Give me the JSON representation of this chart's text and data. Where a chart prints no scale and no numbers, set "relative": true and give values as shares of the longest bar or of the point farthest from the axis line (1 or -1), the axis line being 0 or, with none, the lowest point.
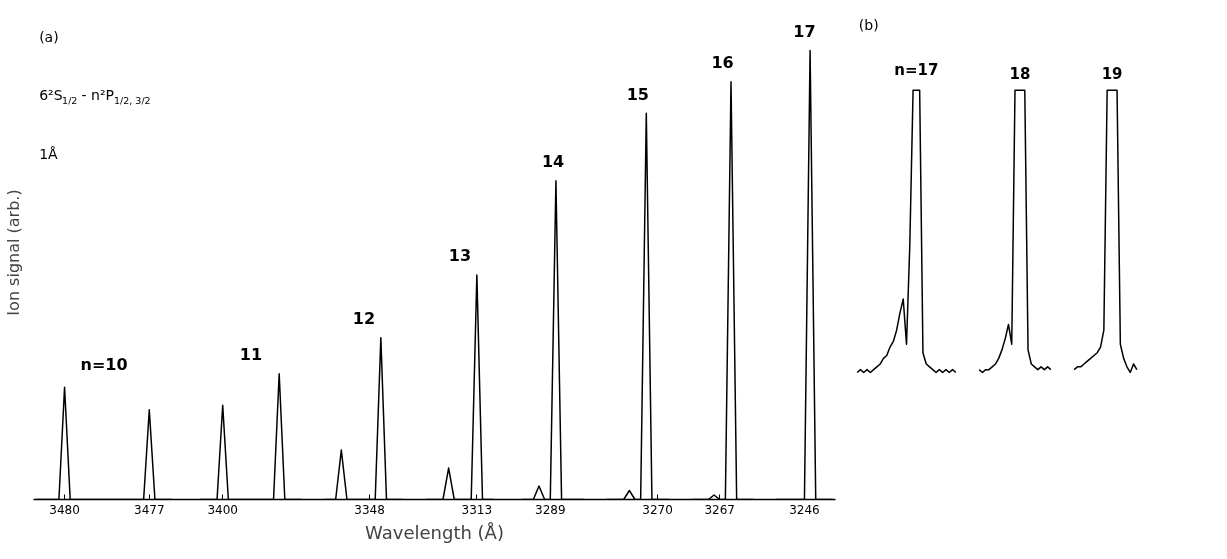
{
  "chart_data": [
    {
      "type": "line",
      "relative": true,
      "ylabel": "Ion signal (arb.)",
      "xlabel": "Wavelength (Å)",
      "annotations": [
        "(a)",
        "6²S$_{1/2}$ - n²P$_{1/2, 3/2}$",
        "1Å"
      ],
      "tick_labels": "x",
      "categories": [
        null,
        null,
        null,
        null,
        null,
        "3480",
        null,
        null,
        null,
        null,
        null,
        null,
        null,
        null,
        null,
        null,
        null,
        null,
        null,
        null,
        "3477",
        null,
        null,
        null,
        null,
        null,
        null,
        null,
        null,
        null,
        null,
        null,
        null,
        "3400",
        null,
        null,
        null,
        null,
        null,
        null,
        null,
        null,
        null,
        null,
        null,
        null,
        null,
        null,
        null,
        null,
        null,
        null,
        null,
        null,
        null,
        null,
        null,
        null,
        null,
        "3348",
        null,
        null,
        null,
        null,
        null,
        null,
        null,
        null,
        null,
        null,
        null,
        null,
        null,
        null,
        null,
        null,
        null,
        null,
        "3313",
        null,
        null,
        null,
        null,
        null,
        null,
        null,
        null,
        null,
        null,
        null,
        null,
        "3289",
        null,
        null,
        null,
        null,
        null,
        null,
        null,
        null,
        null,
        null,
        null,
        null,
        null,
        null,
        null,
        null,
        null,
        null,
        "3270",
        null,
        null,
        null,
        null,
        null,
        null,
        null,
        null,
        null,
        null,
        "3267",
        null,
        null,
        null,
        null,
        null,
        null,
        null,
        null,
        null,
        null,
        null,
        null,
        null,
        null,
        "3246",
        null,
        null,
        null,
        null,
        null
      ],
      "series": [
        {
          "name": "n=10",
          "color": "#000000",
          "values": [
            0,
            0,
            0,
            0,
            0,
            0.25,
            0,
            0,
            0,
            0,
            0,
            0,
            0,
            0,
            0,
            0,
            0,
            0,
            0,
            0,
            0.2,
            0,
            0,
            0,
            0,
            null,
            null,
            null,
            null,
            null,
            null,
            null,
            null,
            null,
            null,
            null,
            null,
            null,
            null,
            null,
            null,
            null,
            null,
            null,
            null,
            null,
            null,
            null,
            null,
            null,
            null,
            null,
            null,
            null,
            null,
            null,
            null,
            null,
            null,
            null,
            null,
            null,
            null,
            null,
            null,
            null,
            null,
            null,
            null,
            null,
            null,
            null,
            null,
            null,
            null,
            null,
            null,
            null,
            null,
            null,
            null,
            null,
            null,
            null,
            null,
            null,
            null,
            null,
            null,
            null,
            null,
            null,
            null,
            null,
            null,
            null,
            null,
            null,
            null,
            null,
            null,
            null,
            null,
            null,
            null,
            null,
            null,
            null,
            null,
            null,
            null,
            null,
            null,
            null,
            null,
            null,
            null,
            null,
            null,
            null,
            null,
            null,
            null,
            null,
            null,
            null,
            null,
            null,
            null,
            null,
            null,
            null,
            null,
            null,
            null,
            null,
            null,
            null,
            null,
            null,
            null,
            null
          ]
        },
        {
          "name": "11",
          "color": "#000000",
          "values": [
            null,
            null,
            null,
            null,
            null,
            null,
            null,
            null,
            null,
            null,
            null,
            null,
            null,
            null,
            null,
            null,
            null,
            null,
            null,
            null,
            null,
            null,
            null,
            null,
            null,
            null,
            null,
            null,
            null,
            0,
            0,
            0,
            0,
            0.21,
            0,
            0,
            0,
            0,
            0,
            0,
            0,
            0,
            0,
            0.28,
            0,
            0,
            0,
            0,
            null,
            null,
            null,
            null,
            null,
            null,
            null,
            null,
            null,
            null,
            null,
            null,
            null,
            null,
            null,
            null,
            null,
            null,
            null,
            null,
            null,
            null,
            null,
            null,
            null,
            null,
            null,
            null,
            null,
            null,
            null,
            null,
            null,
            null,
            null,
            null,
            null,
            null,
            null,
            null,
            null,
            null,
            null,
            null,
            null,
            null,
            null,
            null,
            null,
            null,
            null,
            null,
            null,
            null,
            null,
            null,
            null,
            null,
            null,
            null,
            null,
            null,
            null,
            null,
            null,
            null,
            null,
            null,
            null,
            null,
            null,
            null,
            null,
            null,
            null,
            null,
            null,
            null,
            null,
            null,
            null,
            null,
            null,
            null,
            null,
            null,
            null,
            null,
            null,
            null,
            null,
            null,
            null,
            null
          ]
        },
        {
          "name": "12",
          "color": "#000000",
          "values": [
            null,
            null,
            null,
            null,
            null,
            null,
            null,
            null,
            null,
            null,
            null,
            null,
            null,
            null,
            null,
            null,
            null,
            null,
            null,
            null,
            null,
            null,
            null,
            null,
            null,
            null,
            null,
            null,
            null,
            null,
            null,
            null,
            null,
            null,
            null,
            null,
            null,
            null,
            null,
            null,
            null,
            null,
            null,
            null,
            null,
            null,
            null,
            null,
            null,
            null,
            null,
            0,
            0,
            0,
            0.11,
            0,
            0,
            0,
            0,
            0,
            0,
            0.36,
            0,
            0,
            0,
            0,
            null,
            null,
            null,
            null,
            null,
            null,
            null,
            null,
            null,
            null,
            null,
            null,
            null,
            null,
            null,
            null,
            null,
            null,
            null,
            null,
            null,
            null,
            null,
            null,
            null,
            null,
            null,
            null,
            null,
            null,
            null,
            null,
            null,
            null,
            null,
            null,
            null,
            null,
            null,
            null,
            null,
            null,
            null,
            null,
            null,
            null,
            null,
            null,
            null,
            null,
            null,
            null,
            null,
            null,
            null,
            null,
            null,
            null,
            null,
            null,
            null,
            null,
            null,
            null,
            null,
            null,
            null,
            null,
            null,
            null,
            null,
            null,
            null,
            null,
            null,
            null
          ]
        },
        {
          "name": "13",
          "color": "#000000",
          "values": [
            null,
            null,
            null,
            null,
            null,
            null,
            null,
            null,
            null,
            null,
            null,
            null,
            null,
            null,
            null,
            null,
            null,
            null,
            null,
            null,
            null,
            null,
            null,
            null,
            null,
            null,
            null,
            null,
            null,
            null,
            null,
            null,
            null,
            null,
            null,
            null,
            null,
            null,
            null,
            null,
            null,
            null,
            null,
            null,
            null,
            null,
            null,
            null,
            null,
            null,
            null,
            null,
            null,
            null,
            null,
            null,
            null,
            null,
            null,
            null,
            null,
            null,
            null,
            null,
            null,
            null,
            null,
            null,
            null,
            0,
            0,
            0,
            0,
            0.07,
            0,
            0,
            0,
            0,
            0.5,
            0,
            0,
            0,
            null,
            null,
            null,
            null,
            null,
            null,
            null,
            null,
            null,
            null,
            null,
            null,
            null,
            null,
            null,
            null,
            null,
            null,
            null,
            null,
            null,
            null,
            null,
            null,
            null,
            null,
            null,
            null,
            null,
            null,
            null,
            null,
            null,
            null,
            null,
            null,
            null,
            null,
            null,
            null,
            null,
            null,
            null,
            null,
            null,
            null,
            null,
            null,
            null,
            null,
            null,
            null,
            null,
            null,
            null,
            null,
            null,
            null,
            null,
            null
          ]
        },
        {
          "name": "14",
          "color": "#000000",
          "values": [
            null,
            null,
            null,
            null,
            null,
            null,
            null,
            null,
            null,
            null,
            null,
            null,
            null,
            null,
            null,
            null,
            null,
            null,
            null,
            null,
            null,
            null,
            null,
            null,
            null,
            null,
            null,
            null,
            null,
            null,
            null,
            null,
            null,
            null,
            null,
            null,
            null,
            null,
            null,
            null,
            null,
            null,
            null,
            null,
            null,
            null,
            null,
            null,
            null,
            null,
            null,
            null,
            null,
            null,
            null,
            null,
            null,
            null,
            null,
            null,
            null,
            null,
            null,
            null,
            null,
            null,
            null,
            null,
            null,
            null,
            null,
            null,
            null,
            null,
            null,
            null,
            null,
            null,
            null,
            null,
            null,
            null,
            null,
            null,
            null,
            null,
            0,
            0,
            0,
            0.03,
            0,
            0,
            0.71,
            0,
            0,
            0,
            0,
            0,
            null,
            null,
            null,
            null,
            null,
            null,
            null,
            null,
            null,
            null,
            null,
            null,
            null,
            null,
            null,
            null,
            null,
            null,
            null,
            null,
            null,
            null,
            null,
            null,
            null,
            null,
            null,
            null,
            null,
            null,
            null,
            null,
            null,
            null,
            null,
            null,
            null,
            null,
            null,
            null,
            null,
            null,
            null,
            null
          ]
        },
        {
          "name": "15",
          "color": "#000000",
          "values": [
            null,
            null,
            null,
            null,
            null,
            null,
            null,
            null,
            null,
            null,
            null,
            null,
            null,
            null,
            null,
            null,
            null,
            null,
            null,
            null,
            null,
            null,
            null,
            null,
            null,
            null,
            null,
            null,
            null,
            null,
            null,
            null,
            null,
            null,
            null,
            null,
            null,
            null,
            null,
            null,
            null,
            null,
            null,
            null,
            null,
            null,
            null,
            null,
            null,
            null,
            null,
            null,
            null,
            null,
            null,
            null,
            null,
            null,
            null,
            null,
            null,
            null,
            null,
            null,
            null,
            null,
            null,
            null,
            null,
            null,
            null,
            null,
            null,
            null,
            null,
            null,
            null,
            null,
            null,
            null,
            null,
            null,
            null,
            null,
            null,
            null,
            null,
            null,
            null,
            null,
            null,
            null,
            null,
            null,
            null,
            null,
            null,
            null,
            null,
            null,
            null,
            0,
            0,
            0,
            0,
            0.02,
            0,
            0,
            0.86,
            0,
            0,
            0,
            0,
            null,
            null,
            null,
            null,
            null,
            null,
            null,
            null,
            null,
            null,
            null,
            null,
            null,
            null,
            null,
            null,
            null,
            null,
            null,
            null,
            null,
            null,
            null,
            null,
            null,
            null,
            null,
            null,
            null
          ]
        },
        {
          "name": "16",
          "color": "#000000",
          "values": [
            null,
            null,
            null,
            null,
            null,
            null,
            null,
            null,
            null,
            null,
            null,
            null,
            null,
            null,
            null,
            null,
            null,
            null,
            null,
            null,
            null,
            null,
            null,
            null,
            null,
            null,
            null,
            null,
            null,
            null,
            null,
            null,
            null,
            null,
            null,
            null,
            null,
            null,
            null,
            null,
            null,
            null,
            null,
            null,
            null,
            null,
            null,
            null,
            null,
            null,
            null,
            null,
            null,
            null,
            null,
            null,
            null,
            null,
            null,
            null,
            null,
            null,
            null,
            null,
            null,
            null,
            null,
            null,
            null,
            null,
            null,
            null,
            null,
            null,
            null,
            null,
            null,
            null,
            null,
            null,
            null,
            null,
            null,
            null,
            null,
            null,
            null,
            null,
            null,
            null,
            null,
            null,
            null,
            null,
            null,
            null,
            null,
            null,
            null,
            null,
            null,
            null,
            null,
            null,
            null,
            null,
            null,
            null,
            null,
            null,
            null,
            null,
            null,
            null,
            null,
            null,
            0,
            0,
            0,
            0,
            0.01,
            0,
            0,
            0.93,
            0,
            0,
            0,
            0,
            null,
            null,
            null,
            null,
            null,
            null,
            null,
            null,
            null,
            null,
            null,
            null,
            null,
            null
          ]
        },
        {
          "name": "17",
          "color": "#000000",
          "values": [
            null,
            null,
            null,
            null,
            null,
            null,
            null,
            null,
            null,
            null,
            null,
            null,
            null,
            null,
            null,
            null,
            null,
            null,
            null,
            null,
            null,
            null,
            null,
            null,
            null,
            null,
            null,
            null,
            null,
            null,
            null,
            null,
            null,
            null,
            null,
            null,
            null,
            null,
            null,
            null,
            null,
            null,
            null,
            null,
            null,
            null,
            null,
            null,
            null,
            null,
            null,
            null,
            null,
            null,
            null,
            null,
            null,
            null,
            null,
            null,
            null,
            null,
            null,
            null,
            null,
            null,
            null,
            null,
            null,
            null,
            null,
            null,
            null,
            null,
            null,
            null,
            null,
            null,
            null,
            null,
            null,
            null,
            null,
            null,
            null,
            null,
            null,
            null,
            null,
            null,
            null,
            null,
            null,
            null,
            null,
            null,
            null,
            null,
            null,
            null,
            null,
            null,
            null,
            null,
            null,
            null,
            null,
            null,
            null,
            null,
            null,
            null,
            null,
            null,
            null,
            null,
            null,
            null,
            null,
            null,
            null,
            null,
            null,
            null,
            null,
            null,
            null,
            null,
            null,
            null,
            null,
            0,
            0,
            0,
            0,
            0,
            0,
            1.0,
            0,
            0,
            0,
            0
          ]
        }
      ]
    },
    {
      "type": "line",
      "relative": true,
      "title": "n=17",
      "annotations": [
        "(b)"
      ],
      "categories": [
        null,
        null,
        null,
        null,
        null,
        null,
        null,
        null,
        null,
        null,
        null,
        null,
        null,
        null,
        null,
        null,
        null,
        null,
        null,
        null,
        null,
        null,
        null,
        null,
        null,
        null,
        null,
        null,
        null,
        null,
        null
      ],
      "series": [
        {
          "color": "#000000",
          "values": [
            0.0,
            0.01,
            0.0,
            0.01,
            0.0,
            0.01,
            0.02,
            0.03,
            0.05,
            0.06,
            0.09,
            0.11,
            0.15,
            0.21,
            0.26,
            0.1,
            0.45,
            1,
            1,
            1,
            0.07,
            0.03,
            0.02,
            0.01,
            0.0,
            0.01,
            0.0,
            0.01,
            0.0,
            0.01,
            0.0
          ]
        }
      ]
    },
    {
      "type": "line",
      "relative": true,
      "title": "18",
      "categories": [
        null,
        null,
        null,
        null,
        null,
        null,
        null,
        null,
        null,
        null,
        null,
        null,
        null,
        null,
        null,
        null,
        null,
        null,
        null,
        null,
        null,
        null,
        null
      ],
      "series": [
        {
          "color": "#000000",
          "values": [
            0.01,
            0.0,
            0.01,
            0.01,
            0.02,
            0.03,
            0.05,
            0.08,
            0.12,
            0.17,
            0.1,
            1,
            1,
            1,
            1,
            0.08,
            0.03,
            0.02,
            0.01,
            0.02,
            0.01,
            0.02,
            0.01
          ]
        }
      ]
    },
    {
      "type": "line",
      "relative": true,
      "title": "19",
      "categories": [
        null,
        null,
        null,
        null,
        null,
        null,
        null,
        null,
        null,
        null,
        null,
        null,
        null,
        null,
        null,
        null,
        null,
        null,
        null,
        null
      ],
      "series": [
        {
          "color": "#000000",
          "values": [
            0.01,
            0.02,
            0.02,
            0.03,
            0.04,
            0.05,
            0.06,
            0.07,
            0.09,
            0.15,
            1,
            1,
            1,
            1,
            0.1,
            0.05,
            0.02,
            0.0,
            0.03,
            0.01
          ]
        }
      ]
    }
  ]
}
